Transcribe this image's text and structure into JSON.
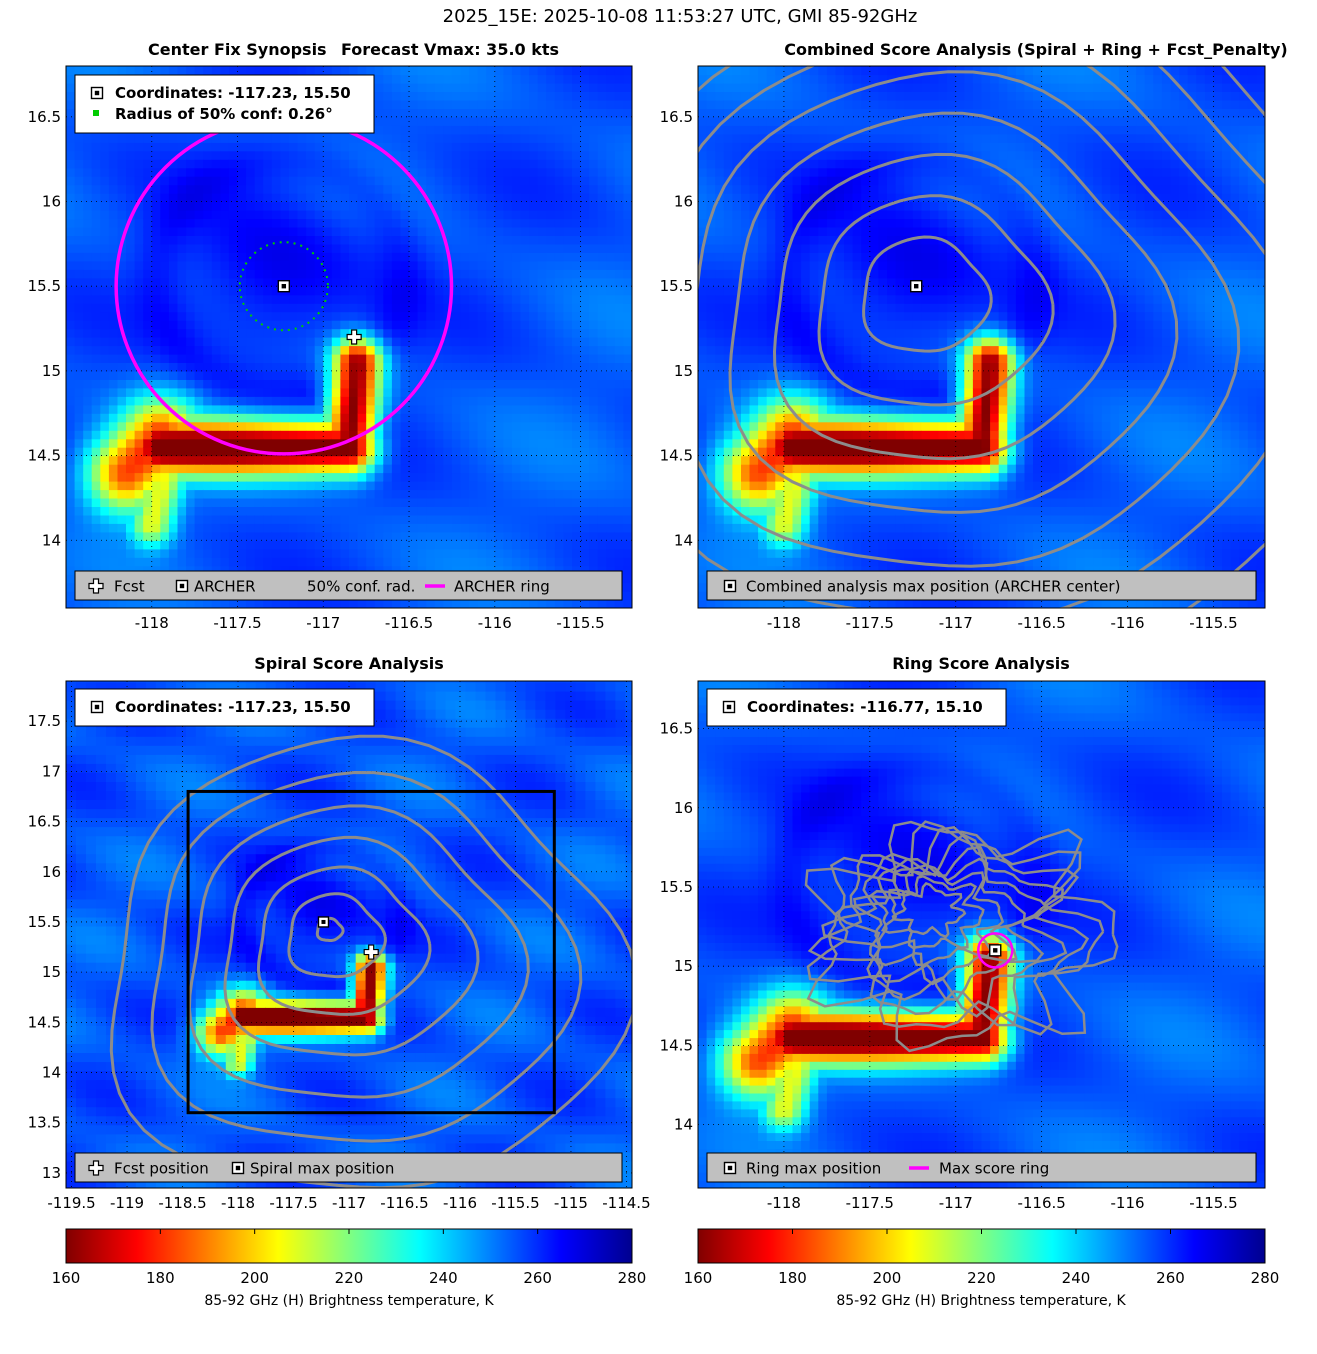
{
  "suptitle": "2025_15E: 2025-10-08 11:53:27 UTC, GMI 85-92GHz",
  "colors": {
    "archer_ring": "#ff00ff",
    "conf_radius": "#00cc00",
    "contour": "#8c8c8c",
    "legend_bg": "#c0c0c0"
  },
  "chart_data": [
    {
      "id": "synopsis",
      "type": "heatmap",
      "title_left": "Center Fix Synopsis",
      "title_right": "Forecast Vmax: 35.0 kts",
      "xlim": [
        -118.5,
        -115.2
      ],
      "ylim": [
        13.6,
        16.8
      ],
      "xticks": [
        -118,
        -117.5,
        -117,
        -116.5,
        -116,
        -115.5
      ],
      "yticks": [
        14,
        14.5,
        15,
        15.5,
        16,
        16.5
      ],
      "info": [
        "Coordinates: -117.23, 15.50",
        "Radius of 50% conf: 0.26°"
      ],
      "legend": [
        "Fcst",
        "ARCHER",
        "50% conf. rad.",
        "ARCHER ring"
      ],
      "archer_center": [
        -117.23,
        15.5
      ],
      "forecast_position": [
        -116.82,
        15.2
      ],
      "conf_radius_deg": 0.26,
      "archer_ring_radius_deg": 0.99
    },
    {
      "id": "combined",
      "type": "heatmap",
      "title": "Combined Score Analysis (Spiral + Ring + Fcst_Penalty)",
      "xlim": [
        -118.5,
        -115.2
      ],
      "ylim": [
        13.6,
        16.8
      ],
      "xticks": [
        -118,
        -117.5,
        -117,
        -116.5,
        -116,
        -115.5
      ],
      "yticks": [
        14,
        14.5,
        15,
        15.5,
        16,
        16.5
      ],
      "legend": [
        "Combined analysis max position (ARCHER center)"
      ],
      "max_position": [
        -117.23,
        15.5
      ]
    },
    {
      "id": "spiral",
      "type": "heatmap",
      "title": "Spiral Score Analysis",
      "xlim": [
        -119.55,
        -114.45
      ],
      "ylim": [
        12.85,
        17.9
      ],
      "xticks": [
        -119.5,
        -119,
        -118.5,
        -118,
        -117.5,
        -117,
        -116.5,
        -116,
        -115.5,
        -115,
        -114.5
      ],
      "yticks": [
        13,
        13.5,
        14,
        14.5,
        15,
        15.5,
        16,
        16.5,
        17,
        17.5
      ],
      "info": [
        "Coordinates: -117.23, 15.50"
      ],
      "legend": [
        "Fcst position",
        "Spiral max position"
      ],
      "max_position": [
        -117.23,
        15.5
      ],
      "forecast_position": [
        -116.8,
        15.2
      ],
      "search_box": {
        "x": [
          -118.45,
          -115.15
        ],
        "y": [
          13.6,
          16.8
        ]
      }
    },
    {
      "id": "ring",
      "type": "heatmap",
      "title": "Ring Score Analysis",
      "xlim": [
        -118.5,
        -115.2
      ],
      "ylim": [
        13.6,
        16.8
      ],
      "xticks": [
        -118,
        -117.5,
        -117,
        -116.5,
        -116,
        -115.5
      ],
      "yticks": [
        14,
        14.5,
        15,
        15.5,
        16,
        16.5
      ],
      "info": [
        "Coordinates: -116.77, 15.10"
      ],
      "legend": [
        "Ring max position",
        "Max score ring"
      ],
      "max_position": [
        -116.77,
        15.1
      ]
    }
  ],
  "colorbars": [
    {
      "label": "85-92 GHz (H) Brightness temperature, K",
      "ticks": [
        160,
        180,
        200,
        220,
        240,
        260,
        280
      ],
      "range": [
        160,
        280
      ],
      "colormap": "jet reversed"
    },
    {
      "label": "85-92 GHz (H) Brightness temperature, K",
      "ticks": [
        160,
        180,
        200,
        220,
        240,
        260,
        280
      ],
      "range": [
        160,
        280
      ],
      "colormap": "jet reversed"
    }
  ]
}
